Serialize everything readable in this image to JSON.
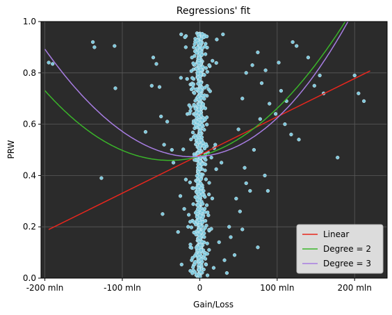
{
  "chart_data": {
    "type": "scatter",
    "title": "Regressions' fit",
    "xlabel": "Gain/Loss",
    "ylabel": "PRW",
    "xlim": [
      -205,
      242
    ],
    "ylim": [
      0,
      1
    ],
    "x_unit": "mln",
    "x_ticks": [
      -200,
      -100,
      0,
      100,
      200
    ],
    "x_tick_labels": [
      "-200 mln",
      "-100 mln",
      "0",
      "100 mln",
      "200 mln"
    ],
    "y_ticks": [
      0,
      0.2,
      0.4,
      0.6,
      0.8,
      1.0
    ],
    "y_tick_labels": [
      "0.0",
      "0.2",
      "0.4",
      "0.6",
      "0.8",
      "1.0"
    ],
    "grid": true,
    "legend_position": "bottom-right",
    "background_color": "#2b2b2b",
    "grid_color": "#5a5a5a",
    "scatter_color": "#7ec8dc",
    "scatter_stroke": "#d8eef5",
    "scatter_points_sample": [
      [
        -195,
        0.84
      ],
      [
        -190,
        0.835
      ],
      [
        -138,
        0.92
      ],
      [
        -136,
        0.9
      ],
      [
        -110,
        0.905
      ],
      [
        -109,
        0.74
      ],
      [
        -127,
        0.39
      ],
      [
        -60,
        0.86
      ],
      [
        -56,
        0.835
      ],
      [
        -62,
        0.75
      ],
      [
        -52,
        0.745
      ],
      [
        -50,
        0.63
      ],
      [
        -42,
        0.61
      ],
      [
        -36,
        0.5
      ],
      [
        -34,
        0.45
      ],
      [
        -46,
        0.52
      ],
      [
        -70,
        0.57
      ],
      [
        -48,
        0.25
      ],
      [
        -25,
        0.32
      ],
      [
        -20,
        0.27
      ],
      [
        -15,
        0.2
      ],
      [
        -28,
        0.18
      ],
      [
        -12,
        0.12
      ],
      [
        -8,
        0.05
      ],
      [
        5,
        0.08
      ],
      [
        12,
        0.11
      ],
      [
        18,
        0.04
      ],
      [
        25,
        0.14
      ],
      [
        32,
        0.07
      ],
      [
        35,
        0.02
      ],
      [
        40,
        0.16
      ],
      [
        45,
        0.09
      ],
      [
        38,
        0.2
      ],
      [
        52,
        0.26
      ],
      [
        55,
        0.19
      ],
      [
        47,
        0.31
      ],
      [
        60,
        0.37
      ],
      [
        58,
        0.43
      ],
      [
        65,
        0.34
      ],
      [
        70,
        0.5
      ],
      [
        50,
        0.58
      ],
      [
        55,
        0.7
      ],
      [
        60,
        0.8
      ],
      [
        68,
        0.83
      ],
      [
        75,
        0.88
      ],
      [
        80,
        0.76
      ],
      [
        85,
        0.81
      ],
      [
        90,
        0.68
      ],
      [
        78,
        0.62
      ],
      [
        84,
        0.4
      ],
      [
        88,
        0.34
      ],
      [
        102,
        0.84
      ],
      [
        105,
        0.73
      ],
      [
        112,
        0.69
      ],
      [
        120,
        0.92
      ],
      [
        125,
        0.905
      ],
      [
        110,
        0.6
      ],
      [
        118,
        0.56
      ],
      [
        128,
        0.54
      ],
      [
        75,
        0.12
      ],
      [
        98,
        0.64
      ],
      [
        140,
        0.86
      ],
      [
        155,
        0.79
      ],
      [
        160,
        0.72
      ],
      [
        148,
        0.75
      ],
      [
        178,
        0.47
      ],
      [
        200,
        0.79
      ],
      [
        212,
        0.69
      ],
      [
        205,
        0.72
      ],
      [
        222,
        0.2
      ],
      [
        30,
        0.95
      ],
      [
        22,
        0.93
      ],
      [
        -18,
        0.9
      ],
      [
        -24,
        0.95
      ],
      [
        15,
        0.47
      ],
      [
        20,
        0.52
      ],
      [
        28,
        0.45
      ],
      [
        -8,
        0.55
      ],
      [
        -5,
        0.38
      ]
    ],
    "series": [
      {
        "name": "Linear",
        "color": "#e8261d",
        "model": "linear",
        "coefficients": [
          0.48,
          0.00149
        ]
      },
      {
        "name": "Degree = 2",
        "color": "#3ab52a",
        "model": "poly",
        "coefficients": [
          0.475,
          0.00082,
          1.05e-05
        ]
      },
      {
        "name": "Degree = 3",
        "color": "#a77de2",
        "model": "poly",
        "coefficients": [
          0.474,
          0.00022,
          1.24e-05,
          4.2e-09
        ]
      }
    ]
  }
}
